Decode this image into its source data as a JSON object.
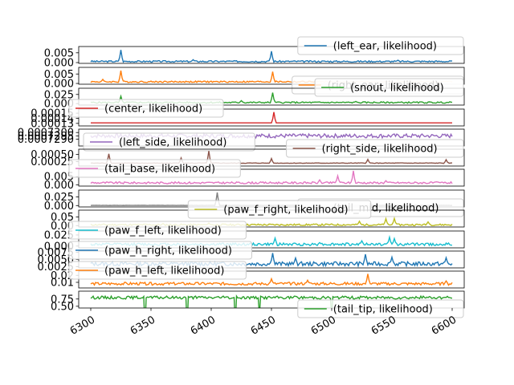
{
  "chart_data": {
    "type": "line",
    "title": "",
    "xlabel": "",
    "xlim": [
      6290,
      6610
    ],
    "xticks": [
      6300,
      6350,
      6400,
      6450,
      6500,
      6550,
      6600
    ],
    "xtick_labels": [
      "6300",
      "6350",
      "6400",
      "6450",
      "6500",
      "6550",
      "6600"
    ],
    "x_start": 6300,
    "x_end": 6600,
    "panels": [
      {
        "label": "(left_ear, likelihood)",
        "color": "#1f77b4",
        "ylim": [
          -0.0004,
          0.0082
        ],
        "yticks": [
          0.0,
          0.005
        ],
        "ytick_labels": [
          "0.000",
          "0.005"
        ],
        "legend_loc": "upper right",
        "base": 0.0006,
        "noise": 0.0004,
        "spikes": [
          [
            6325,
            0.0065
          ],
          [
            6450,
            0.0058
          ],
          [
            6385,
            0.0015
          ],
          [
            6555,
            0.0012
          ]
        ]
      },
      {
        "label": "(right_ear, likelihood)",
        "color": "#ff7f0e",
        "ylim": [
          -0.0004,
          0.0085
        ],
        "yticks": [
          0.0,
          0.005
        ],
        "ytick_labels": [
          "0.000",
          "0.005"
        ],
        "legend_loc": "lower right",
        "base": 0.0009,
        "noise": 0.0004,
        "spikes": [
          [
            6325,
            0.0068
          ],
          [
            6451,
            0.0062
          ],
          [
            6310,
            0.0022
          ],
          [
            6555,
            0.0018
          ]
        ]
      },
      {
        "label": "(snout, likelihood)",
        "color": "#2ca02c",
        "ylim": [
          -0.004,
          0.042
        ],
        "yticks": [
          0.0,
          0.025
        ],
        "ytick_labels": [
          "0.000",
          "0.025"
        ],
        "legend_loc": "upper right",
        "base": 0.003,
        "noise": 0.002,
        "spikes": [
          [
            6451,
            0.03
          ],
          [
            6325,
            0.02
          ],
          [
            6425,
            0.008
          ],
          [
            6520,
            0.006
          ]
        ]
      },
      {
        "label": "(center, likelihood)",
        "color": "#d62728",
        "ylim": [
          0.000125,
          0.000158
        ],
        "yticks": [
          0.00013,
          0.00014,
          0.00015
        ],
        "ytick_labels": [
          "0.00013",
          "0.00014",
          "0.00015"
        ],
        "legend_loc": "upper left",
        "base": 0.000131,
        "noise": 0.0,
        "spikes": [
          [
            6452,
            0.000152
          ]
        ]
      },
      {
        "label": "(left_side, likelihood)",
        "color": "#9467bd",
        "ylim": [
          0.000728,
          0.0007305
        ],
        "yticks": [
          0.000729,
          0.0007295,
          0.00073
        ],
        "ytick_labels": [
          "0.0007290",
          "0.0007295",
          "0.0007300"
        ],
        "legend_loc": "lower left",
        "base": 0.0007295,
        "noise": 3e-07,
        "spikes": []
      },
      {
        "label": "(right_side, likelihood)",
        "color": "#8c564b",
        "ylim": [
          0.0001,
          0.00068
        ],
        "yticks": [
          0.00025,
          0.0005
        ],
        "ytick_labels": [
          "0.00025",
          "0.00050"
        ],
        "legend_loc": "upper right",
        "base": 0.0002,
        "noise": 1e-05,
        "spikes": [
          [
            6315,
            0.00052
          ],
          [
            6375,
            0.00038
          ],
          [
            6398,
            0.00062
          ],
          [
            6450,
            0.00036
          ],
          [
            6530,
            0.00033
          ],
          [
            6595,
            0.00032
          ]
        ]
      },
      {
        "label": "(tail_base, likelihood)",
        "color": "#e377c2",
        "ylim": [
          -0.0008,
          0.0095
        ],
        "yticks": [
          0.0,
          0.005
        ],
        "ytick_labels": [
          "0.000",
          "0.005"
        ],
        "legend_loc": "upper left",
        "base": 0.0012,
        "noise": 0.0006,
        "spikes": [
          [
            6505,
            0.0055
          ],
          [
            6518,
            0.0085
          ],
          [
            6490,
            0.003
          ],
          [
            6545,
            0.0025
          ]
        ]
      },
      {
        "label": "(tail_mid, likelihood)",
        "color": "#7f7f7f",
        "ylim": [
          -0.004,
          0.045
        ],
        "yticks": [
          0.0,
          0.025
        ],
        "ytick_labels": [
          "0.000",
          "0.025"
        ],
        "legend_loc": "lower right",
        "base": 0.0005,
        "noise": 0.0003,
        "spikes": [
          [
            6405,
            0.038
          ]
        ]
      },
      {
        "label": "(paw_f_right, likelihood)",
        "color": "#bcbd22",
        "ylim": [
          -0.008,
          0.09
        ],
        "yticks": [
          0.0,
          0.05
        ],
        "ytick_labels": [
          "0.00",
          "0.05"
        ],
        "legend_loc": "upper center",
        "base": 0.005,
        "noise": 0.005,
        "spikes": [
          [
            6545,
            0.04
          ],
          [
            6552,
            0.042
          ],
          [
            6523,
            0.025
          ],
          [
            6398,
            0.015
          ],
          [
            6580,
            0.022
          ],
          [
            6360,
            0.012
          ]
        ]
      },
      {
        "label": "(paw_f_left, likelihood)",
        "color": "#17becf",
        "ylim": [
          -0.004,
          0.034
        ],
        "yticks": [
          0.0,
          0.025
        ],
        "ytick_labels": [
          "0.000",
          "0.025"
        ],
        "legend_loc": "upper left",
        "base": 0.004,
        "noise": 0.003,
        "spikes": [
          [
            6453,
            0.018
          ],
          [
            6548,
            0.02
          ],
          [
            6552,
            0.017
          ],
          [
            6525,
            0.012
          ],
          [
            6490,
            0.008
          ],
          [
            6575,
            0.006
          ]
        ]
      },
      {
        "label": "(paw_h_right, likelihood)",
        "color": "#1f77b4",
        "ylim": [
          0.0021,
          0.0079
        ],
        "yticks": [
          0.0025,
          0.005,
          0.0075
        ],
        "ytick_labels": [
          "0.0025",
          "0.0050",
          "0.0075"
        ],
        "legend_loc": "upper left",
        "base": 0.0035,
        "noise": 0.0007,
        "spikes": [
          [
            6451,
            0.0072
          ],
          [
            6528,
            0.0068
          ],
          [
            6550,
            0.0058
          ],
          [
            6595,
            0.0056
          ],
          [
            6470,
            0.0055
          ]
        ]
      },
      {
        "label": "(paw_h_left, likelihood)",
        "color": "#ff7f0e",
        "ylim": [
          0.002,
          0.026
        ],
        "yticks": [
          0.01,
          0.02
        ],
        "ytick_labels": [
          "0.01",
          "0.02"
        ],
        "legend_loc": "upper left",
        "base": 0.008,
        "noise": 0.002,
        "spikes": [
          [
            6530,
            0.022
          ],
          [
            6450,
            0.015
          ],
          [
            6480,
            0.013
          ],
          [
            6595,
            0.012
          ]
        ]
      },
      {
        "label": "(tail_tip, likelihood)",
        "color": "#2ca02c",
        "ylim": [
          0.44,
          1.02
        ],
        "yticks": [
          0.5,
          0.75
        ],
        "ytick_labels": [
          "0.50",
          "0.75"
        ],
        "legend_loc": "lower right",
        "base": 0.8,
        "noise": 0.05,
        "spikes": [
          [
            6345,
            -0.3
          ],
          [
            6380,
            -0.2
          ],
          [
            6420,
            -0.15
          ],
          [
            6440,
            0.18
          ],
          [
            6500,
            0.15
          ]
        ]
      }
    ]
  }
}
